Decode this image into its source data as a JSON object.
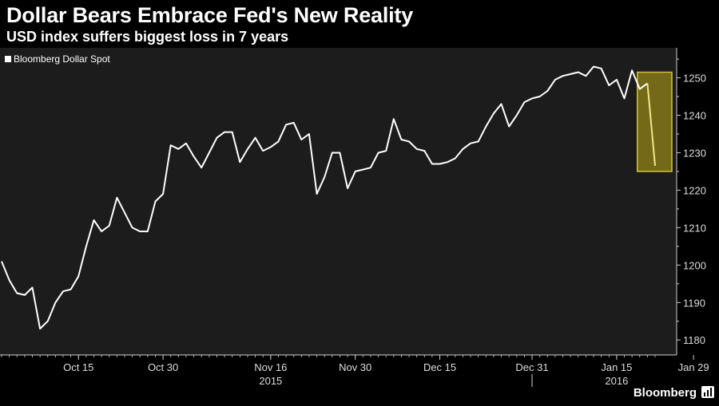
{
  "header": {
    "title": "Dollar Bears Embrace Fed's New Reality",
    "subtitle": "USD index suffers biggest loss in 7 years"
  },
  "footer": {
    "brand": "Bloomberg",
    "icon": "bloomberg-chart-icon"
  },
  "colors": {
    "background": "#000000",
    "plot_background": "#1c1c1c",
    "line": "#ffffff",
    "highlight_fill": "#8a7d18",
    "highlight_border": "#d4c23a",
    "highlight_line": "#f2e68a",
    "axis": "#cfcfcf",
    "text": "#ffffff"
  },
  "chart_data": {
    "type": "line",
    "title": "Dollar Bears Embrace Fed's New Reality",
    "subtitle": "USD index suffers biggest loss in 7 years",
    "xlabel": "",
    "ylabel": "",
    "ylim": [
      1176,
      1258
    ],
    "yticks": [
      1180,
      1190,
      1200,
      1210,
      1220,
      1230,
      1240,
      1250
    ],
    "x_tick_labels": [
      "Oct 15",
      "Oct 30",
      "Nov 16",
      "Nov 30",
      "Dec 15",
      "Dec 31",
      "Jan 15",
      "Jan 29"
    ],
    "x_tick_index": [
      10,
      21,
      35,
      46,
      57,
      69,
      80,
      90
    ],
    "year_labels": [
      {
        "label": "2015",
        "index": 35
      },
      {
        "label": "2016",
        "index": 80
      }
    ],
    "legend": {
      "label": "Bloomberg Dollar Spot",
      "placement": "top-left"
    },
    "grid": false,
    "series": [
      {
        "name": "Bloomberg Dollar Spot",
        "values": [
          1201,
          1196,
          1192.5,
          1192,
          1194,
          1183,
          1185,
          1190,
          1193,
          1193.5,
          1197,
          1205,
          1212,
          1209,
          1210.5,
          1218,
          1214,
          1210,
          1209,
          1209,
          1217,
          1219,
          1232,
          1231,
          1232.5,
          1229,
          1226,
          1230,
          1234,
          1235.5,
          1235.5,
          1227.5,
          1231,
          1234,
          1230.5,
          1231.5,
          1233,
          1237.5,
          1238,
          1233.5,
          1235,
          1219,
          1223.5,
          1230,
          1230,
          1220.5,
          1225,
          1225.5,
          1226,
          1230,
          1230.5,
          1239,
          1233.5,
          1233,
          1231,
          1230.5,
          1227,
          1227,
          1227.5,
          1228.5,
          1231,
          1232.5,
          1233,
          1237,
          1240.5,
          1243,
          1237,
          1240,
          1243.5,
          1244.5,
          1245,
          1246.5,
          1249.5,
          1250.5,
          1251,
          1251.5,
          1250.5,
          1253,
          1252.5,
          1248,
          1249.5,
          1244.5,
          1252,
          1247,
          1248.5,
          1226.5
        ]
      }
    ],
    "highlight": {
      "start_index": 83,
      "end_index": 85,
      "y_range": [
        1225,
        1251.5
      ]
    }
  }
}
